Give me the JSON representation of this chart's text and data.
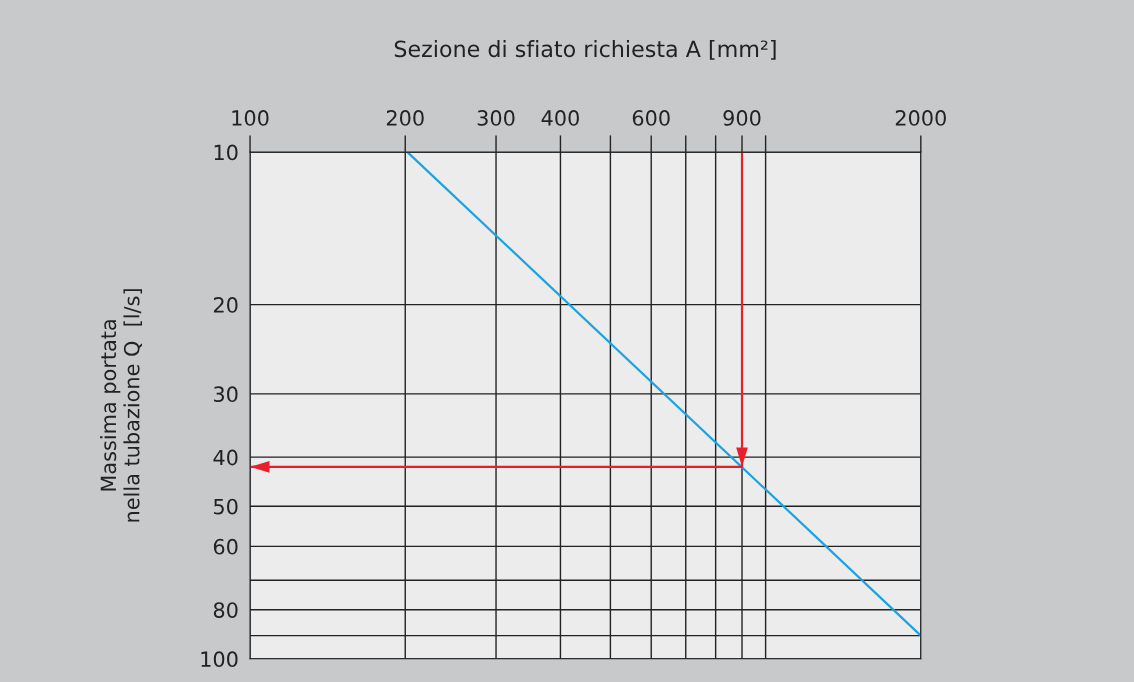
{
  "chart_data": {
    "type": "line",
    "xlabel": "Sezione di sfiato richiesta A [mm²]",
    "ylabel": "Massima portata\nnella tubazione Q  [l/s]",
    "log": "xy",
    "grid": true,
    "legend": false,
    "xlim": [
      100,
      2000
    ],
    "xticks": [
      100,
      200,
      300,
      400,
      {
        "value": 500,
        "label": null
      },
      600,
      {
        "value": 700,
        "label": null
      },
      {
        "value": 800,
        "label": null
      },
      900,
      {
        "value": 1000,
        "label": null
      },
      2000
    ],
    "ylim": [
      100,
      10
    ],
    "yticks": [
      10,
      20,
      30,
      40,
      50,
      60,
      {
        "value": 70,
        "label": null
      },
      80,
      {
        "value": 90,
        "label": null
      },
      100
    ],
    "series": [
      {
        "color": "#1aa3e0",
        "x": [
          202,
          2000
        ],
        "values": [
          10,
          90
        ]
      },
      {
        "color": "#e8202a",
        "x": [
          900,
          900,
          100
        ],
        "values": [
          10,
          41.8,
          41.8
        ]
      }
    ]
  }
}
